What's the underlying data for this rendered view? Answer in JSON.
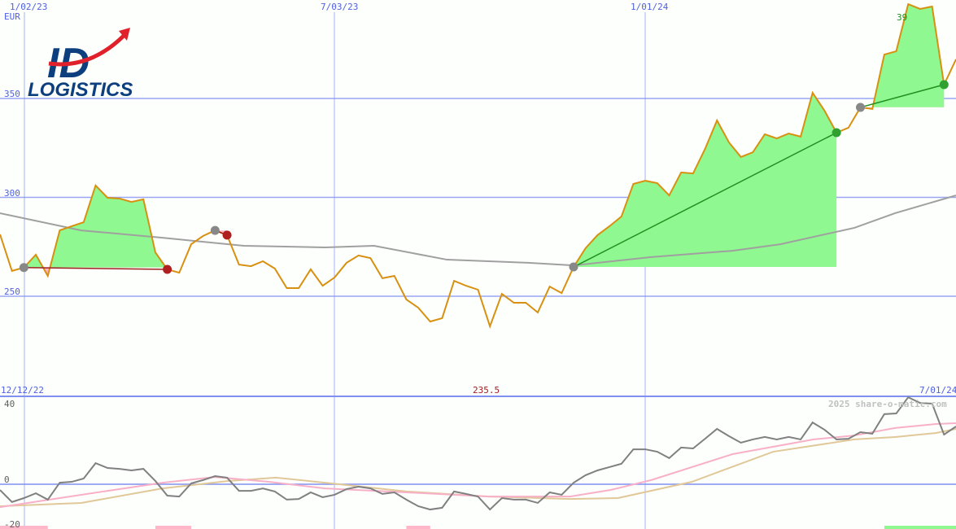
{
  "chart_data": [
    {
      "type": "line",
      "unit_label": "EUR",
      "x_tick_labels": [
        "1/02/23",
        "7/03/23",
        "1/01/24"
      ],
      "y_ticks": [
        250,
        300,
        350
      ],
      "ylim": [
        207,
        400
      ],
      "grid": true,
      "price": [
        281.3,
        262.8,
        264.5,
        271.0,
        260.3,
        283.3,
        285.4,
        287.4,
        306.0,
        299.8,
        299.4,
        297.7,
        299.0,
        272.2,
        263.6,
        261.9,
        276.3,
        280.5,
        283.3,
        280.9,
        266.0,
        265.2,
        267.7,
        264.0,
        254.1,
        254.1,
        263.6,
        255.3,
        259.5,
        266.9,
        270.6,
        269.3,
        259.1,
        260.3,
        248.4,
        244.2,
        237.2,
        238.9,
        257.8,
        255.3,
        253.3,
        234.8,
        251.2,
        246.7,
        246.7,
        241.8,
        254.9,
        251.6,
        264.8,
        274.3,
        280.9,
        285.4,
        290.3,
        306.8,
        308.4,
        307.2,
        301.0,
        312.6,
        312.1,
        324.5,
        338.9,
        327.8,
        320.4,
        322.8,
        331.9,
        329.8,
        332.3,
        330.7,
        352.9,
        343.8,
        332.7,
        335.2,
        345.5,
        344.7,
        372.2,
        373.9,
        397.7,
        395.3,
        396.5,
        357.0,
        369.8
      ],
      "moving_average": [
        [
          0,
          292.0
        ],
        [
          6.8,
          283.3
        ],
        [
          13.6,
          279.6
        ],
        [
          20.4,
          275.5
        ],
        [
          27.2,
          274.7
        ],
        [
          31.3,
          275.5
        ],
        [
          37.4,
          268.5
        ],
        [
          44.2,
          266.9
        ],
        [
          48,
          265.6
        ],
        [
          54.5,
          269.8
        ],
        [
          61.3,
          273.0
        ],
        [
          65.3,
          276.3
        ],
        [
          71.5,
          284.6
        ],
        [
          74.9,
          292.0
        ],
        [
          80,
          301.0
        ]
      ],
      "trades": [
        {
          "entry": 2,
          "exit": 14,
          "result": "loss"
        },
        {
          "entry": 18,
          "exit": 19,
          "result": "loss"
        },
        {
          "entry": 48,
          "exit": 70,
          "result": "gain"
        },
        {
          "entry": 72,
          "exit": 79,
          "result": "gain"
        }
      ],
      "annotation": "39"
    },
    {
      "type": "line",
      "start_label": "12/12/22",
      "end_label": "7/01/24",
      "center_label": "235.5",
      "y_ticks": [
        -20,
        0,
        40
      ],
      "ylim": [
        -20,
        40
      ],
      "momentum": [
        -2.6,
        -8.1,
        -6.3,
        -4.1,
        -7.0,
        0.7,
        1.1,
        2.6,
        9.6,
        7.4,
        7.0,
        6.3,
        7.0,
        1.5,
        -5.2,
        -5.6,
        0.4,
        1.9,
        3.7,
        3.0,
        -3.0,
        -3.0,
        -1.9,
        -3.3,
        -7.0,
        -6.7,
        -3.7,
        -5.9,
        -4.8,
        -2.2,
        -1.1,
        -1.9,
        -4.4,
        -3.7,
        -7.0,
        -10.0,
        -11.5,
        -10.7,
        -3.3,
        -4.4,
        -5.6,
        -11.5,
        -6.3,
        -7.0,
        -7.0,
        -8.5,
        -3.7,
        -4.8,
        0.7,
        4.1,
        6.3,
        7.8,
        9.3,
        15.9,
        15.9,
        14.8,
        11.9,
        16.7,
        16.3,
        20.7,
        25.2,
        21.9,
        18.9,
        20.4,
        21.5,
        20.4,
        21.5,
        20.4,
        28.1,
        24.8,
        20.4,
        20.7,
        23.7,
        23.0,
        31.9,
        32.2,
        39.6,
        37.0,
        36.7,
        22.6,
        26.3
      ],
      "signal_fast": [
        [
          0,
          -10.4
        ],
        [
          6.8,
          -4.8
        ],
        [
          13.6,
          0.7
        ],
        [
          18,
          3.3
        ],
        [
          22.5,
          1.1
        ],
        [
          27.2,
          -1.9
        ],
        [
          34,
          -3.7
        ],
        [
          40.9,
          -5.6
        ],
        [
          47.7,
          -5.6
        ],
        [
          51.1,
          -2.6
        ],
        [
          54.5,
          1.9
        ],
        [
          61.3,
          13.7
        ],
        [
          68.1,
          20.4
        ],
        [
          71.5,
          22.2
        ],
        [
          74.9,
          25.6
        ],
        [
          78.3,
          27.4
        ],
        [
          80,
          27.8
        ]
      ],
      "signal_slow": [
        [
          0,
          -10.0
        ],
        [
          6.8,
          -8.5
        ],
        [
          13.6,
          -1.9
        ],
        [
          19.1,
          1.5
        ],
        [
          23.1,
          3.0
        ],
        [
          27.2,
          0.7
        ],
        [
          34,
          -3.3
        ],
        [
          40.9,
          -5.6
        ],
        [
          47.7,
          -6.7
        ],
        [
          51.7,
          -6.3
        ],
        [
          57.9,
          1.1
        ],
        [
          64.7,
          14.8
        ],
        [
          71.5,
          20.4
        ],
        [
          74.9,
          21.5
        ],
        [
          78.3,
          23.3
        ],
        [
          80,
          25.2
        ]
      ],
      "bars": [
        {
          "from": 0,
          "to": 4,
          "color": "#ffb6c8"
        },
        {
          "from": 13,
          "to": 16,
          "color": "#ffb6c8"
        },
        {
          "from": 34,
          "to": 36,
          "color": "#ffb6c8"
        },
        {
          "from": 74,
          "to": 80,
          "color": "#90f890"
        }
      ]
    }
  ],
  "watermark": "2025 share-o-matic.com",
  "logo": {
    "text_top": "ID",
    "text_bottom": "LOGISTICS"
  },
  "colors": {
    "grid": "#8090f0",
    "price": "#d89010",
    "ma": "#a0a0a0",
    "gain_fill": "#90f890",
    "loss_fill": "#ffb6c8",
    "gain_line": "#209020",
    "loss_line": "#a02020",
    "momentum": "#808080",
    "fast": "#f8b0c8",
    "slow": "#e0c898"
  }
}
